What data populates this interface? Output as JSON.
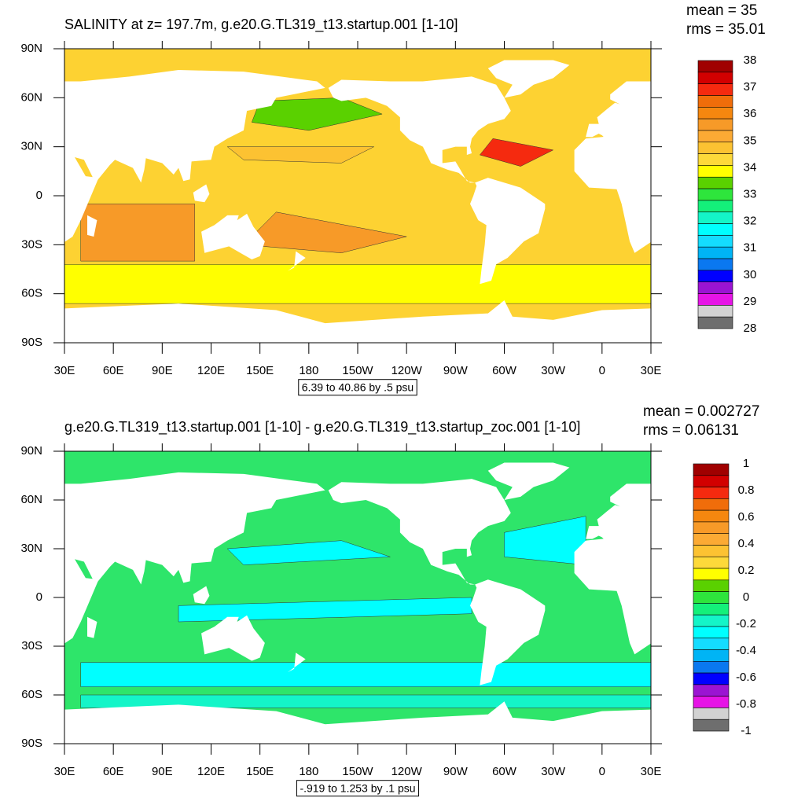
{
  "chart_data": [
    {
      "type": "map",
      "title": "SALINITY at z= 197.7m, g.e20.G.TL319_t13.startup.001 [1-10]",
      "stats": [
        "mean = 35",
        "rms = 35.01"
      ],
      "note": "6.39 to 40.86 by .5 psu",
      "xlim": [
        30,
        390
      ],
      "ylim": [
        -90,
        90
      ],
      "xticks": [
        {
          "value": 30,
          "label": "30E"
        },
        {
          "value": 60,
          "label": "60E"
        },
        {
          "value": 90,
          "label": "90E"
        },
        {
          "value": 120,
          "label": "120E"
        },
        {
          "value": 150,
          "label": "150E"
        },
        {
          "value": 180,
          "label": "180"
        },
        {
          "value": 210,
          "label": "150W"
        },
        {
          "value": 240,
          "label": "120W"
        },
        {
          "value": 270,
          "label": "90W"
        },
        {
          "value": 300,
          "label": "60W"
        },
        {
          "value": 330,
          "label": "30W"
        },
        {
          "value": 360,
          "label": "0"
        },
        {
          "value": 390,
          "label": "30E"
        }
      ],
      "yticks": [
        {
          "value": 90,
          "label": "90N"
        },
        {
          "value": 60,
          "label": "60N"
        },
        {
          "value": 30,
          "label": "30N"
        },
        {
          "value": 0,
          "label": "0"
        },
        {
          "value": -30,
          "label": "30S"
        },
        {
          "value": -60,
          "label": "60S"
        },
        {
          "value": -90,
          "label": "90S"
        }
      ],
      "colorbar_levels": [
        38,
        37,
        36,
        35,
        34,
        33,
        32,
        31,
        30,
        29,
        28
      ],
      "colorbar_colors": [
        "#a00000",
        "#d20000",
        "#f52a0f",
        "#f06d0a",
        "#f5870f",
        "#f79a28",
        "#fbaa34",
        "#fcc232",
        "#fdd93a",
        "#ffff00",
        "#5ad100",
        "#2ee53c",
        "#14f07a",
        "#14f5c8",
        "#00ffff",
        "#14dcff",
        "#00b4f5",
        "#0a78f0",
        "#0000ff",
        "#9b14d2",
        "#e614e6",
        "#d2d2d2",
        "#6e6e6e"
      ],
      "ocean": "#fdd232"
    },
    {
      "type": "map",
      "title": "g.e20.G.TL319_t13.startup.001 [1-10] - g.e20.G.TL319_t13.startup_zoc.001 [1-10]",
      "stats": [
        "mean = 0.002727",
        "rms = 0.06131"
      ],
      "note": "-.919 to 1.253 by .1 psu",
      "xlim": [
        30,
        390
      ],
      "ylim": [
        -90,
        90
      ],
      "xticks": [
        {
          "value": 30,
          "label": "30E"
        },
        {
          "value": 60,
          "label": "60E"
        },
        {
          "value": 90,
          "label": "90E"
        },
        {
          "value": 120,
          "label": "120E"
        },
        {
          "value": 150,
          "label": "150E"
        },
        {
          "value": 180,
          "label": "180"
        },
        {
          "value": 210,
          "label": "150W"
        },
        {
          "value": 240,
          "label": "120W"
        },
        {
          "value": 270,
          "label": "90W"
        },
        {
          "value": 300,
          "label": "60W"
        },
        {
          "value": 330,
          "label": "30W"
        },
        {
          "value": 360,
          "label": "0"
        },
        {
          "value": 390,
          "label": "30E"
        }
      ],
      "yticks": [
        {
          "value": 90,
          "label": "90N"
        },
        {
          "value": 60,
          "label": "60N"
        },
        {
          "value": 30,
          "label": "30N"
        },
        {
          "value": 0,
          "label": "0"
        },
        {
          "value": -30,
          "label": "30S"
        },
        {
          "value": -60,
          "label": "60S"
        },
        {
          "value": -90,
          "label": "90S"
        }
      ],
      "colorbar_levels": [
        1,
        0.8,
        0.6,
        0.4,
        0.2,
        0,
        -0.2,
        -0.4,
        -0.6,
        -0.8,
        -1
      ],
      "colorbar_colors": [
        "#a00000",
        "#d20000",
        "#f52a0f",
        "#f06d0a",
        "#f5870f",
        "#f79a28",
        "#fbaa34",
        "#fcc232",
        "#fdd93a",
        "#ffff00",
        "#5ad100",
        "#2ee53c",
        "#14f07a",
        "#14f5c8",
        "#00ffff",
        "#14dcff",
        "#00b4f5",
        "#0a78f0",
        "#0000ff",
        "#9b14d2",
        "#e614e6",
        "#d2d2d2",
        "#6e6e6e"
      ],
      "ocean": "#2ee56a"
    }
  ]
}
